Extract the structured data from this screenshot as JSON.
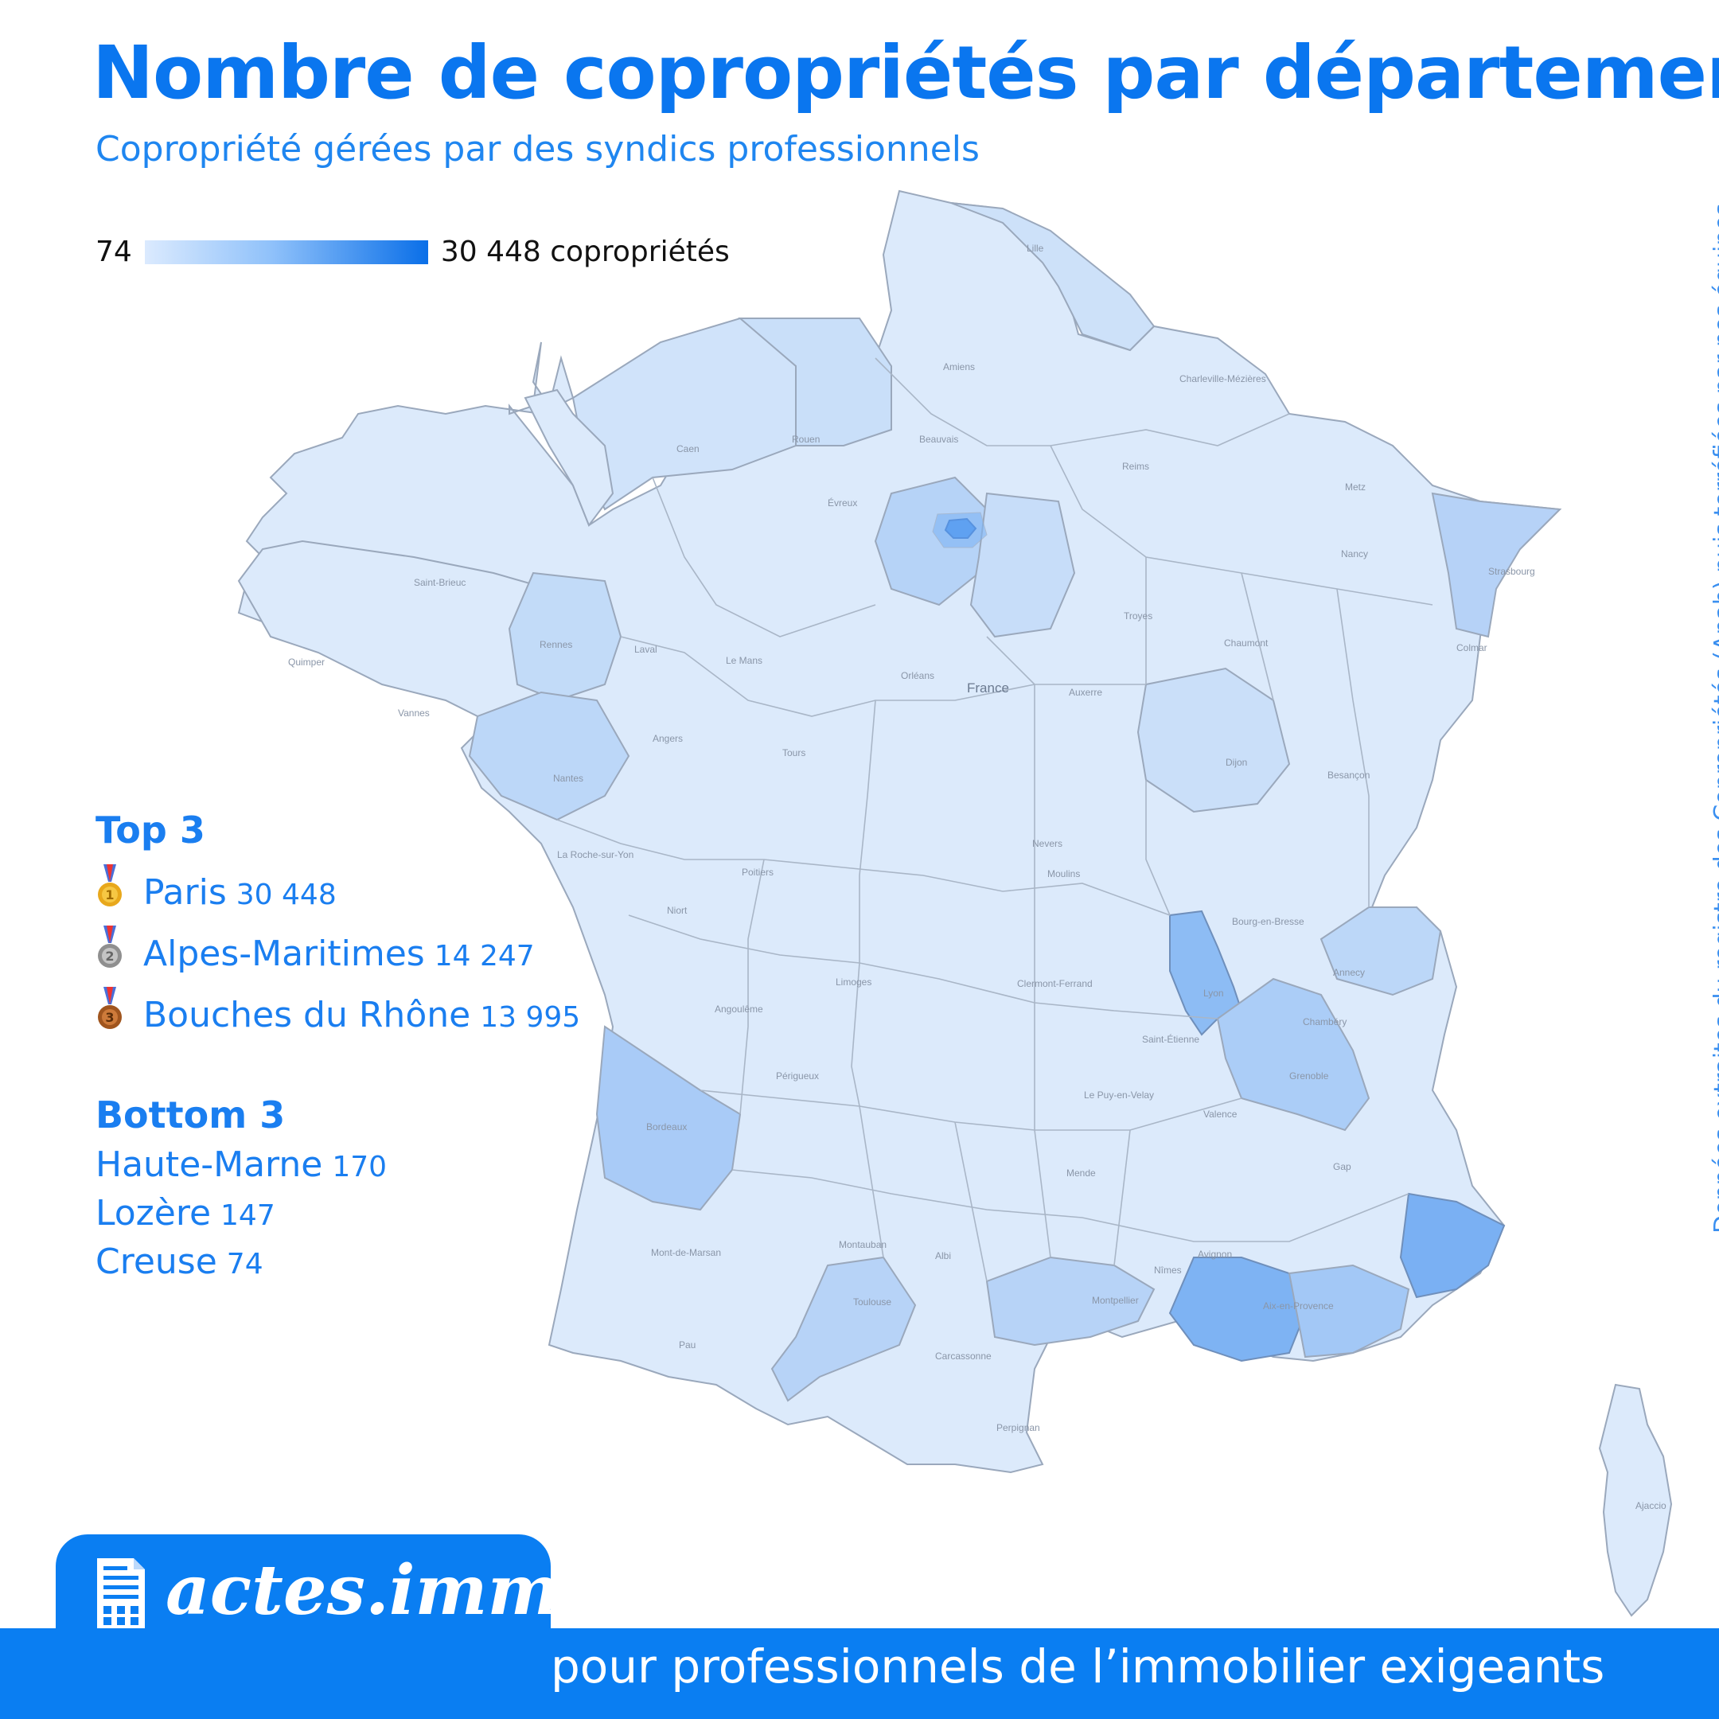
{
  "header": {
    "title": "Nombre de copropriétés par département",
    "subtitle": "Copropriété gérées par des syndics professionnels"
  },
  "legend": {
    "min": "74",
    "max": "30 448 copropriétés",
    "color_low": "#dbeafe",
    "color_high": "#0a6fe8"
  },
  "map": {
    "country_label": "France",
    "city_labels": [
      "Lille",
      "Amiens",
      "Rouen",
      "Caen",
      "Beauvais",
      "Reims",
      "Metz",
      "Nancy",
      "Strasbourg",
      "Colmar",
      "Rennes",
      "Quimper",
      "Vannes",
      "Nantes",
      "Le Mans",
      "Laval",
      "Angers",
      "Tours",
      "Orléans",
      "Auxerre",
      "Troyes",
      "Dijon",
      "Besançon",
      "Poitiers",
      "Limoges",
      "Lyon",
      "Annecy",
      "Chambéry",
      "Grenoble",
      "Bordeaux",
      "Toulouse",
      "Montpellier",
      "Nîmes",
      "Avignon",
      "Aix-en-Provence",
      "Carcassonne",
      "Perpignan",
      "Pau",
      "Périgueux",
      "Angoulême",
      "Clermont-Ferrand",
      "Saint-Étienne",
      "Valence",
      "Gap",
      "Albi",
      "Montauban",
      "Mont-de-Marsan",
      "Mende",
      "Le Puy-en-Velay",
      "Nevers",
      "Moulins",
      "Bourg-en-Bresse",
      "Chaumont",
      "Évreux",
      "Saint-Brieuc",
      "La Roche-sur-Yon",
      "Niort",
      "Charleville-Mézières",
      "Ajaccio"
    ],
    "departments": [
      {
        "name": "Paris",
        "value": 30448
      },
      {
        "name": "Alpes-Maritimes",
        "value": 14247
      },
      {
        "name": "Bouches du Rhône",
        "value": 13995
      },
      {
        "name": "Haute-Marne",
        "value": 170
      },
      {
        "name": "Lozère",
        "value": 147
      },
      {
        "name": "Creuse",
        "value": 74
      }
    ]
  },
  "top3": {
    "heading": "Top 3",
    "items": [
      {
        "name": "Paris",
        "value": "30 448",
        "medal": "gold-medal-icon",
        "color": "#e8a81c"
      },
      {
        "name": "Alpes-Maritimes",
        "value": "14 247",
        "medal": "silver-medal-icon",
        "color": "#9a9a9a"
      },
      {
        "name": "Bouches du Rhône",
        "value": "13 995",
        "medal": "bronze-medal-icon",
        "color": "#b0632a"
      }
    ]
  },
  "bottom3": {
    "heading": "Bottom 3",
    "items": [
      {
        "name": "Haute-Marne",
        "value": "170"
      },
      {
        "name": "Lozère",
        "value": "147"
      },
      {
        "name": "Creuse",
        "value": "74"
      }
    ]
  },
  "side_note": "Données extraites du registre des Copropriétés (Anah) puis torréfiées par nos équipes",
  "brand": {
    "name": "actes.immo",
    "icon": "building-document-icon",
    "tagline": "Commande d’actes pour professionnels de l’immobilier exigeants",
    "color": "#0a7ef2"
  }
}
